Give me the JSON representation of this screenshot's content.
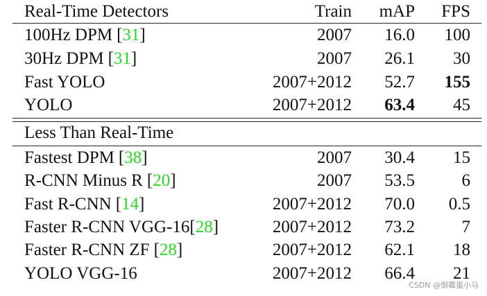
{
  "table": {
    "header": [
      "Real-Time Detectors",
      "Train",
      "mAP",
      "FPS"
    ],
    "sections": [
      {
        "rows": [
          {
            "name": "100Hz DPM",
            "cite": "31",
            "train": "2007",
            "map": "16.0",
            "fps": "100"
          },
          {
            "name": "30Hz DPM",
            "cite": "31",
            "train": "2007",
            "map": "26.1",
            "fps": "30"
          },
          {
            "name": "Fast YOLO",
            "train": "2007+2012",
            "map": "52.7",
            "fps": "155",
            "bold": "fps"
          },
          {
            "name": "YOLO",
            "train": "2007+2012",
            "map": "63.4",
            "fps": "45",
            "bold": "map"
          }
        ]
      },
      {
        "title": "Less Than Real-Time",
        "rows": [
          {
            "name": "Fastest DPM",
            "cite": "38",
            "train": "2007",
            "map": "30.4",
            "fps": "15"
          },
          {
            "name": "R-CNN Minus R",
            "cite": "20",
            "train": "2007",
            "map": "53.5",
            "fps": "6"
          },
          {
            "name": "Fast R-CNN",
            "cite": "14",
            "train": "2007+2012",
            "map": "70.0",
            "fps": "0.5"
          },
          {
            "name": "Faster R-CNN VGG-16",
            "cite": "28",
            "train": "2007+2012",
            "map": "73.2",
            "fps": "7"
          },
          {
            "name": "Faster R-CNN ZF",
            "cite": "28",
            "train": "2007+2012",
            "map": "62.1",
            "fps": "18"
          },
          {
            "name": "YOLO VGG-16",
            "train": "2007+2012",
            "map": "66.4",
            "fps": "21"
          }
        ]
      }
    ]
  },
  "watermark": "CSDN @倒霉蛋小马"
}
